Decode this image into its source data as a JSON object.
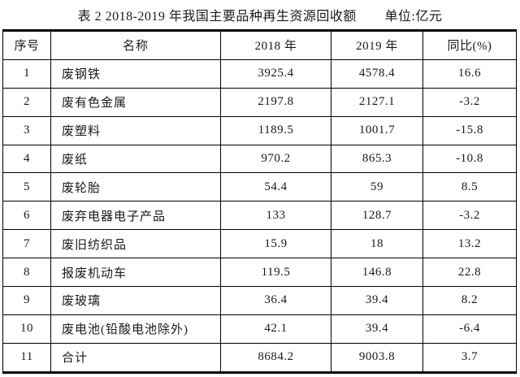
{
  "page": {
    "background": "#ffffff",
    "text_color": "#1a1a1a",
    "border_color": "#000000"
  },
  "title": {
    "main": "表 2  2018-2019 年我国主要品种再生资源回收额",
    "unit": "单位:亿元"
  },
  "table": {
    "columns": [
      "序号",
      "名称",
      "2018 年",
      "2019 年",
      "同比(%)"
    ],
    "rows": [
      [
        "1",
        "废钢铁",
        "3925.4",
        "4578.4",
        "16.6"
      ],
      [
        "2",
        "废有色金属",
        "2197.8",
        "2127.1",
        "-3.2"
      ],
      [
        "3",
        "废塑料",
        "1189.5",
        "1001.7",
        "-15.8"
      ],
      [
        "4",
        "废纸",
        "970.2",
        "865.3",
        "-10.8"
      ],
      [
        "5",
        "废轮胎",
        "54.4",
        "59",
        "8.5"
      ],
      [
        "6",
        "废弃电器电子产品",
        "133",
        "128.7",
        "-3.2"
      ],
      [
        "7",
        "废旧纺织品",
        "15.9",
        "18",
        "13.2"
      ],
      [
        "8",
        "报废机动车",
        "119.5",
        "146.8",
        "22.8"
      ],
      [
        "9",
        "废玻璃",
        "36.4",
        "39.4",
        "8.2"
      ],
      [
        "10",
        "废电池(铅酸电池除外)",
        "42.1",
        "39.4",
        "-6.4"
      ],
      [
        "11",
        "合计",
        "8684.2",
        "9003.8",
        "3.7"
      ]
    ]
  }
}
